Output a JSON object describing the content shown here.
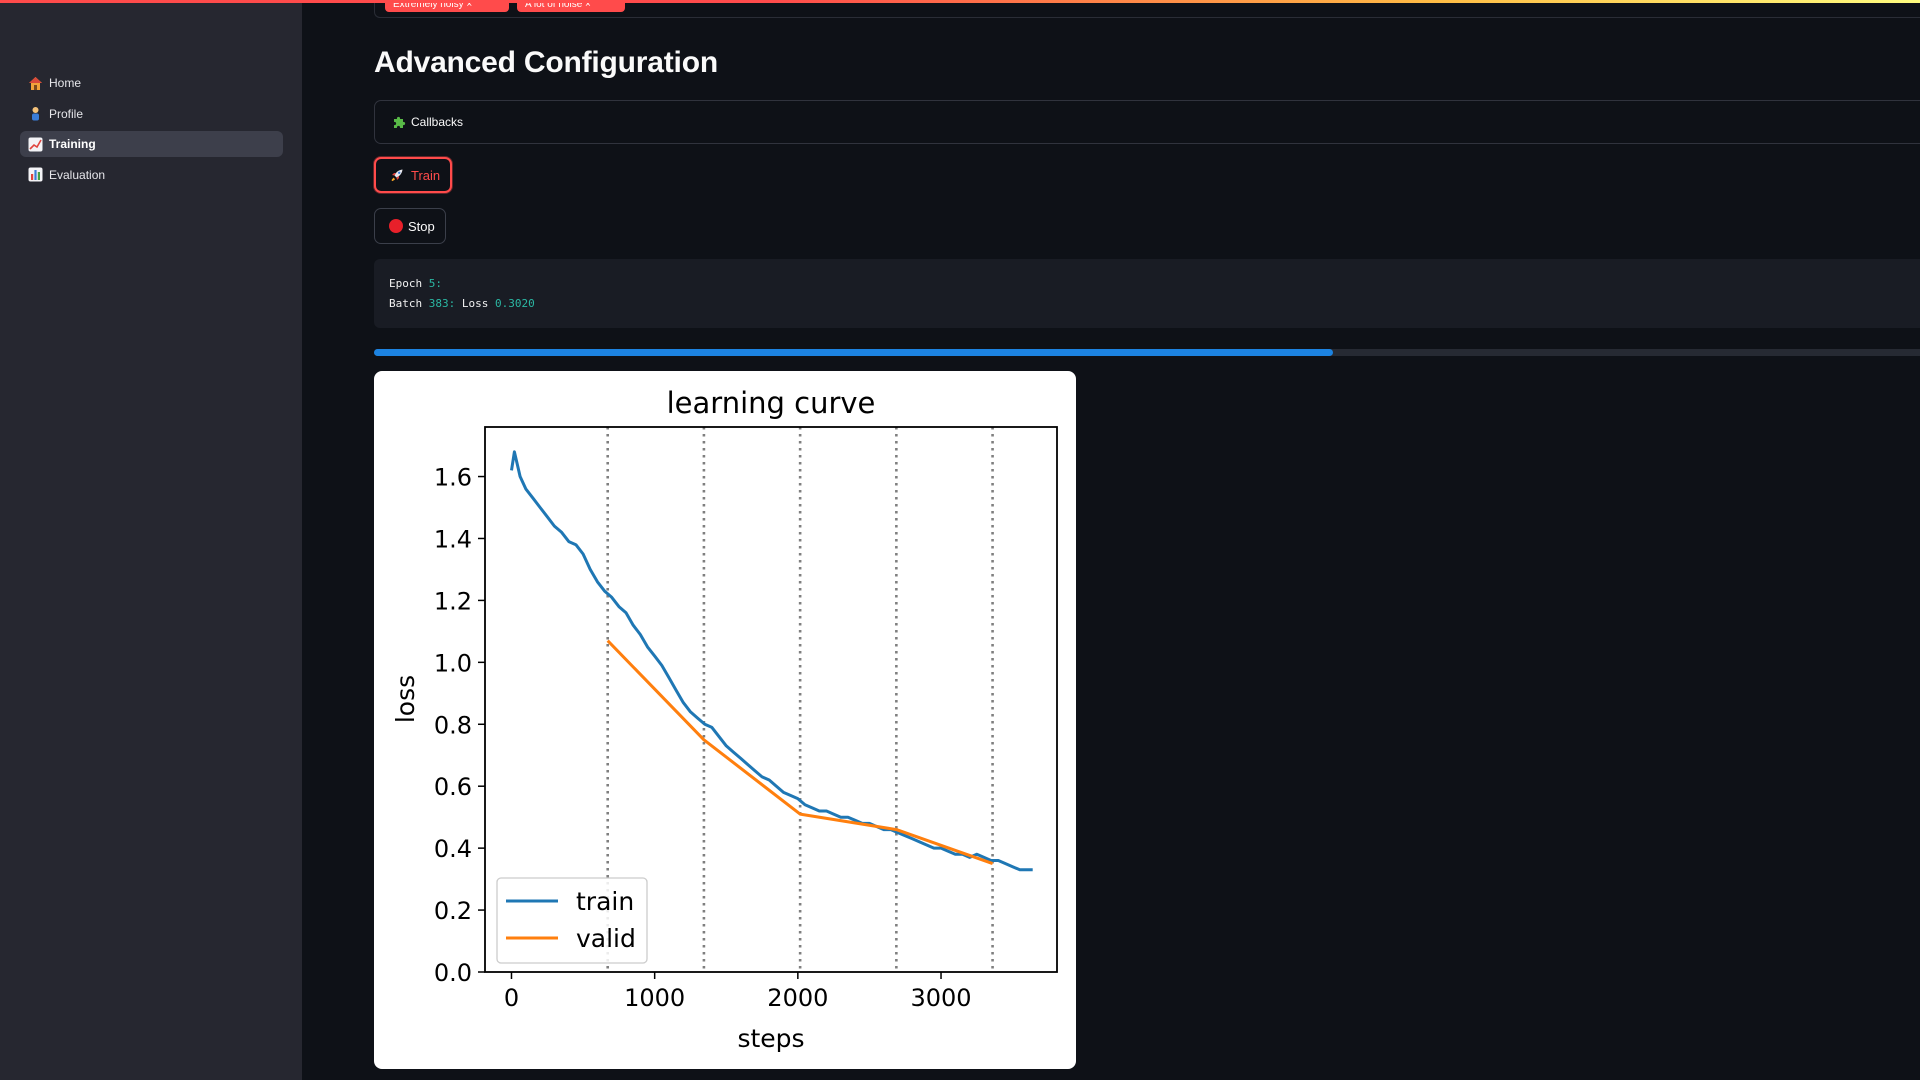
{
  "header": {
    "tags": [
      "Extremely noisy ×",
      "A lot of noise ×"
    ]
  },
  "sidebar": {
    "items": [
      {
        "label": "Home",
        "icon": "house-icon",
        "active": false
      },
      {
        "label": "Profile",
        "icon": "person-icon",
        "active": false
      },
      {
        "label": "Training",
        "icon": "chart-increasing-icon",
        "active": true
      },
      {
        "label": "Evaluation",
        "icon": "bar-chart-icon",
        "active": false
      }
    ]
  },
  "main": {
    "title": "Advanced Configuration",
    "expander": {
      "icon": "puzzle-icon",
      "label": "Callbacks"
    },
    "train_button": {
      "icon": "rocket-icon",
      "label": "Train"
    },
    "stop_button": {
      "icon": "red-circle-icon",
      "label": "Stop"
    },
    "log": {
      "epoch_label": "Epoch",
      "epoch_value": "5",
      "batch_label": "Batch",
      "batch_value": "383",
      "loss_label": "Loss",
      "loss_value": "0.3020"
    },
    "progress": 0.62
  },
  "colors": {
    "accent": "#ff4b4b",
    "progress": "#1c83e1",
    "train_series": "#1f77b4",
    "valid_series": "#ff7f0e",
    "background": "#0e1117",
    "sidebar": "#262730"
  },
  "chart_data": {
    "type": "line",
    "title": "learning curve",
    "xlabel": "steps",
    "ylabel": "loss",
    "xlim": [
      -185,
      3810
    ],
    "ylim": [
      0.0,
      1.76
    ],
    "xticks": [
      0,
      1000,
      2000,
      3000
    ],
    "yticks": [
      0.0,
      0.2,
      0.4,
      0.6,
      0.8,
      1.0,
      1.2,
      1.4,
      1.6
    ],
    "epoch_boundaries": [
      672,
      1344,
      2016,
      2688,
      3360
    ],
    "legend": "lower-left",
    "grid": false,
    "series": [
      {
        "name": "train",
        "x": [
          0,
          20,
          60,
          100,
          150,
          200,
          250,
          300,
          350,
          400,
          450,
          500,
          550,
          600,
          650,
          700,
          750,
          800,
          850,
          900,
          950,
          1000,
          1050,
          1100,
          1150,
          1200,
          1250,
          1300,
          1350,
          1400,
          1450,
          1500,
          1550,
          1600,
          1650,
          1700,
          1750,
          1800,
          1850,
          1900,
          1950,
          2000,
          2050,
          2100,
          2150,
          2200,
          2250,
          2300,
          2350,
          2400,
          2450,
          2500,
          2550,
          2600,
          2650,
          2700,
          2750,
          2800,
          2850,
          2900,
          2950,
          3000,
          3050,
          3100,
          3150,
          3200,
          3250,
          3300,
          3350,
          3400,
          3450,
          3500,
          3550,
          3600,
          3640
        ],
        "values": [
          1.62,
          1.68,
          1.6,
          1.56,
          1.53,
          1.5,
          1.47,
          1.44,
          1.42,
          1.39,
          1.38,
          1.35,
          1.3,
          1.26,
          1.23,
          1.21,
          1.18,
          1.16,
          1.12,
          1.09,
          1.05,
          1.02,
          0.99,
          0.95,
          0.91,
          0.87,
          0.84,
          0.82,
          0.8,
          0.79,
          0.76,
          0.73,
          0.71,
          0.69,
          0.67,
          0.65,
          0.63,
          0.62,
          0.6,
          0.58,
          0.57,
          0.56,
          0.54,
          0.53,
          0.52,
          0.52,
          0.51,
          0.5,
          0.5,
          0.49,
          0.48,
          0.48,
          0.47,
          0.46,
          0.46,
          0.45,
          0.44,
          0.43,
          0.42,
          0.41,
          0.4,
          0.4,
          0.39,
          0.38,
          0.38,
          0.37,
          0.38,
          0.37,
          0.36,
          0.36,
          0.35,
          0.34,
          0.33,
          0.33,
          0.33
        ]
      },
      {
        "name": "valid",
        "x": [
          672,
          1344,
          2016,
          2688,
          3360
        ],
        "values": [
          1.07,
          0.75,
          0.51,
          0.46,
          0.35
        ]
      }
    ]
  }
}
